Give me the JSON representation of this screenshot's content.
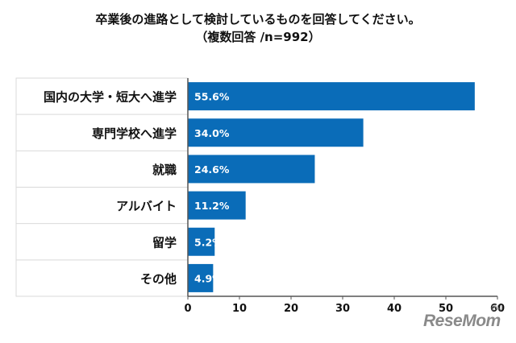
{
  "title_line1": "卒業後の進路として検討しているものを回答してください。",
  "title_line2": "（複数回答 /n=992）",
  "unit_label": "(%)",
  "logo_text": "ReseMom",
  "colors": {
    "bar": "#0a6cb8",
    "label": "#ffffff",
    "grid": "#d9d9d9",
    "border": "#555555"
  },
  "chart_data": {
    "type": "bar",
    "orientation": "horizontal",
    "categories": [
      "国内の大学・短大へ進学",
      "専門学校へ進学",
      "就職",
      "アルバイト",
      "留学",
      "その他"
    ],
    "values": [
      55.6,
      34.0,
      24.6,
      11.2,
      5.2,
      4.9
    ],
    "value_labels": [
      "55.6%",
      "34.0%",
      "24.6%",
      "11.2%",
      "5.2%",
      "4.9%"
    ],
    "xlim": [
      0,
      60
    ],
    "xticks": [
      "0",
      "10",
      "20",
      "30",
      "40",
      "50",
      "60"
    ],
    "grid": false
  }
}
